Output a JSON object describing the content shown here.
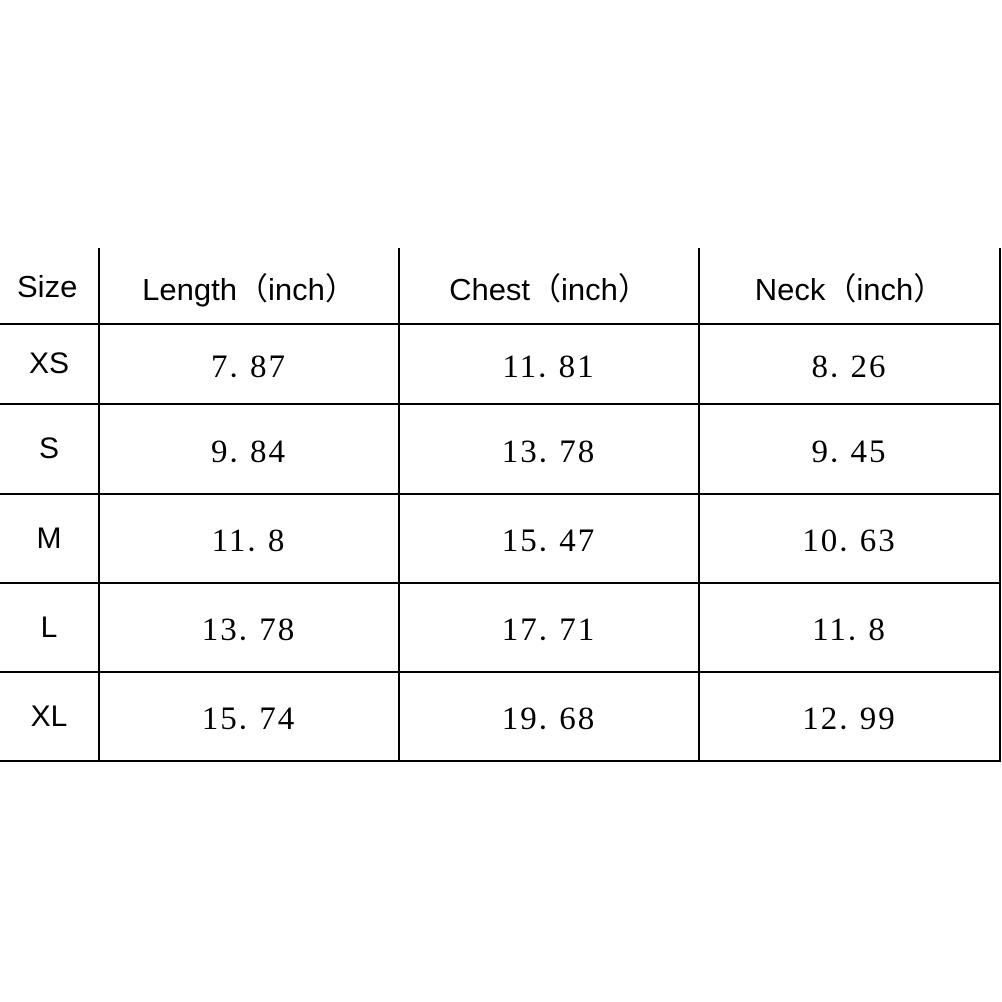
{
  "table": {
    "headers": [
      "Size",
      "Length（inch）",
      "Chest（inch）",
      "Neck（inch）"
    ],
    "rows": [
      {
        "size": "XS",
        "length": "7. 87",
        "chest": "11. 81",
        "neck": "8. 26"
      },
      {
        "size": "S",
        "length": "9. 84",
        "chest": "13. 78",
        "neck": "9. 45"
      },
      {
        "size": "M",
        "length": "11. 8",
        "chest": "15. 47",
        "neck": "10. 63"
      },
      {
        "size": "L",
        "length": "13. 78",
        "chest": "17. 71",
        "neck": "11. 8"
      },
      {
        "size": "XL",
        "length": "15. 74",
        "chest": "19. 68",
        "neck": "12. 99"
      }
    ]
  }
}
